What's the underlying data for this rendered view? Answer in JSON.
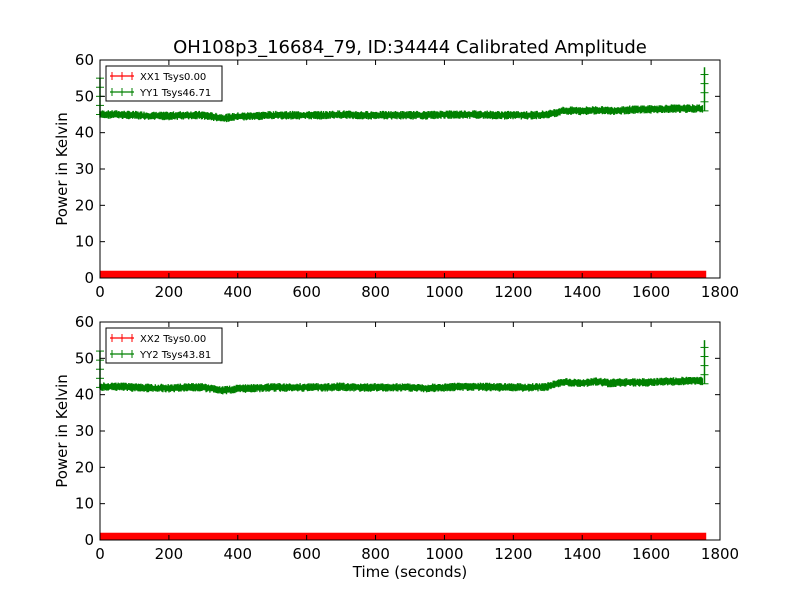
{
  "title": "OH108p3_16684_79, ID:34444 Calibrated Amplitude",
  "chart_data": [
    {
      "type": "line",
      "ylabel": "Power in Kelvin",
      "xlabel": "",
      "xlim": [
        0,
        1800
      ],
      "ylim": [
        0,
        60
      ],
      "xticks": [
        "0",
        "200",
        "400",
        "600",
        "800",
        "1000",
        "1200",
        "1400",
        "1600",
        "1800"
      ],
      "yticks": [
        "0",
        "10",
        "20",
        "30",
        "40",
        "50",
        "60"
      ],
      "legend_position": "top-left",
      "series": [
        {
          "name": "XX1 Tsys0.00",
          "color": "#ff0000",
          "x": [
            0,
            1760
          ],
          "y": [
            1,
            1
          ],
          "band": [
            0,
            2
          ]
        },
        {
          "name": "YY1 Tsys46.71",
          "color": "#008000",
          "x": [
            0,
            50,
            100,
            150,
            200,
            250,
            300,
            340,
            360,
            380,
            400,
            450,
            500,
            550,
            600,
            650,
            700,
            750,
            800,
            850,
            900,
            950,
            1000,
            1050,
            1100,
            1150,
            1200,
            1250,
            1300,
            1320,
            1340,
            1360,
            1400,
            1440,
            1480,
            1520,
            1560,
            1600,
            1650,
            1700,
            1750
          ],
          "y": [
            45,
            45,
            44.8,
            44.6,
            44.6,
            44.8,
            44.8,
            44.2,
            44,
            44.2,
            44.4,
            44.6,
            44.8,
            44.8,
            44.8,
            44.8,
            45,
            44.8,
            44.8,
            44.8,
            44.8,
            44.8,
            45,
            45,
            45,
            44.8,
            44.8,
            44.8,
            45,
            45.4,
            46,
            46,
            46,
            46.2,
            46,
            46.2,
            46.4,
            46.4,
            46.6,
            46.6,
            46.6
          ],
          "spread": 1.2,
          "edge_spikes": [
            {
              "x": 0,
              "y_low": 45,
              "y_high": 55
            },
            {
              "x": 1755,
              "y_low": 46,
              "y_high": 58
            }
          ]
        }
      ]
    },
    {
      "type": "line",
      "ylabel": "Power in Kelvin",
      "xlabel": "Time (seconds)",
      "xlim": [
        0,
        1800
      ],
      "ylim": [
        0,
        60
      ],
      "xticks": [
        "0",
        "200",
        "400",
        "600",
        "800",
        "1000",
        "1200",
        "1400",
        "1600",
        "1800"
      ],
      "yticks": [
        "0",
        "10",
        "20",
        "30",
        "40",
        "50",
        "60"
      ],
      "legend_position": "top-left",
      "series": [
        {
          "name": "XX2 Tsys0.00",
          "color": "#ff0000",
          "x": [
            0,
            1760
          ],
          "y": [
            1,
            1
          ],
          "band": [
            0,
            2
          ]
        },
        {
          "name": "YY2 Tsys43.81",
          "color": "#008000",
          "x": [
            0,
            50,
            100,
            150,
            200,
            250,
            300,
            340,
            360,
            380,
            400,
            450,
            500,
            550,
            600,
            650,
            700,
            750,
            800,
            850,
            900,
            950,
            1000,
            1050,
            1100,
            1150,
            1200,
            1250,
            1300,
            1320,
            1340,
            1360,
            1400,
            1440,
            1480,
            1520,
            1560,
            1600,
            1650,
            1700,
            1750
          ],
          "y": [
            42.2,
            42.2,
            42,
            41.8,
            41.8,
            42,
            42,
            41.4,
            41.2,
            41.4,
            41.6,
            41.8,
            42,
            42,
            42,
            42,
            42.2,
            42,
            42,
            42,
            42,
            41.8,
            42,
            42.2,
            42.2,
            42,
            42,
            42,
            42.2,
            42.8,
            43.4,
            43.4,
            43.2,
            43.6,
            43.2,
            43.4,
            43.4,
            43.4,
            43.6,
            43.8,
            43.8
          ],
          "spread": 1.2,
          "edge_spikes": [
            {
              "x": 0,
              "y_low": 42,
              "y_high": 52
            },
            {
              "x": 1755,
              "y_low": 43,
              "y_high": 55
            }
          ]
        }
      ]
    }
  ]
}
